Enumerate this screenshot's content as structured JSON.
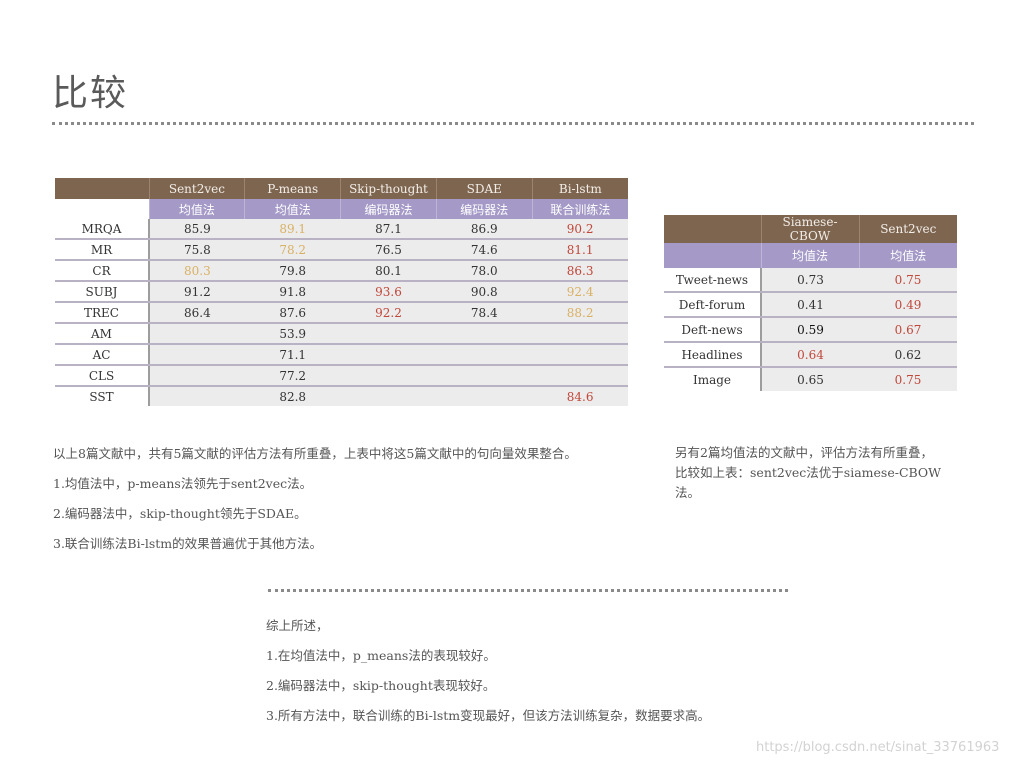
{
  "title": "比较",
  "table1": {
    "headers": [
      "",
      "Sent2vec",
      "P-means",
      "Skip-thought",
      "SDAE",
      "Bi-lstm"
    ],
    "methods": [
      "",
      "均值法",
      "均值法",
      "编码器法",
      "编码器法",
      "联合训练法"
    ],
    "rows": [
      {
        "label": "MRQA",
        "cells": [
          "85.9",
          "89.1",
          "87.1",
          "86.9",
          "90.2"
        ]
      },
      {
        "label": "MR",
        "cells": [
          "75.8",
          "78.2",
          "76.5",
          "74.6",
          "81.1"
        ]
      },
      {
        "label": "CR",
        "cells": [
          "80.3",
          "79.8",
          "80.1",
          "78.0",
          "86.3"
        ]
      },
      {
        "label": "SUBJ",
        "cells": [
          "91.2",
          "91.8",
          "93.6",
          "90.8",
          "92.4"
        ]
      },
      {
        "label": "TREC",
        "cells": [
          "86.4",
          "87.6",
          "92.2",
          "78.4",
          "88.2"
        ]
      },
      {
        "label": "AM",
        "cells": [
          "",
          "53.9",
          "",
          "",
          ""
        ]
      },
      {
        "label": "AC",
        "cells": [
          "",
          "71.1",
          "",
          "",
          ""
        ]
      },
      {
        "label": "CLS",
        "cells": [
          "",
          "77.2",
          "",
          "",
          ""
        ]
      },
      {
        "label": "SST",
        "cells": [
          "",
          "82.8",
          "",
          "",
          "84.6"
        ]
      }
    ]
  },
  "table2": {
    "headers": [
      "",
      "Siamese- CBOW",
      "Sent2vec"
    ],
    "methods": [
      "",
      "均值法",
      "均值法"
    ],
    "rows": [
      {
        "label": "Tweet-news",
        "cells": [
          "0.73",
          "0.75"
        ]
      },
      {
        "label": "Deft-forum",
        "cells": [
          "0.41",
          "0.49"
        ]
      },
      {
        "label": "Deft-news",
        "cells": [
          "0.59",
          "0.67"
        ]
      },
      {
        "label": "Headlines",
        "cells": [
          "0.64",
          "0.62"
        ]
      },
      {
        "label": "Image",
        "cells": [
          "0.65",
          "0.75"
        ]
      }
    ]
  },
  "notes_left": [
    "以上8篇文献中，共有5篇文献的评估方法有所重叠，上表中将这5篇文献中的句向量效果整合。",
    "1.均值法中，p-means法领先于sent2vec法。",
    "2.编码器法中，skip-thought领先于SDAE。",
    "3.联合训练法Bi-lstm的效果普遍优于其他方法。"
  ],
  "notes_right": "另有2篇均值法的文献中，评估方法有所重叠，比较如上表：sent2vec法优于siamese-CBOW法。",
  "summary": [
    "综上所述，",
    "1.在均值法中，p_means法的表现较好。",
    "2.编码器法中，skip-thought表现较好。",
    "3.所有方法中，联合训练的Bi-lstm变现最好，但该方法训练复杂，数据要求高。"
  ],
  "watermark": "https://blog.csdn.net/sinat_33761963",
  "colors": {
    "header_brown": "#7d6550",
    "header_purple": "#a59ac7",
    "highlight_red": "#c0473a",
    "highlight_gold": "#d9b164"
  }
}
